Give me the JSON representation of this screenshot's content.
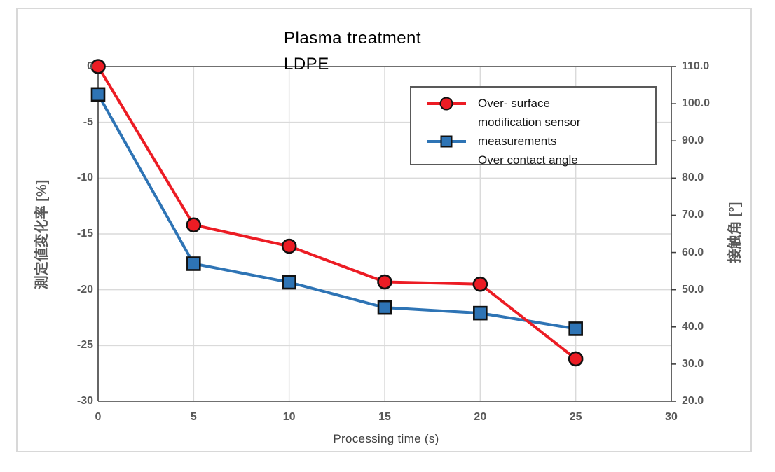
{
  "title": {
    "line1": "Plasma treatment",
    "line2": "LDPE"
  },
  "axes": {
    "left_label": "測定値変化率 [%]",
    "right_label": "接触角 [°]",
    "x_label": "Processing time (s)"
  },
  "legend": {
    "entries": [
      {
        "label": "Over- surface\nmodification sensor",
        "marker": "circle",
        "color": "#ec1c24"
      },
      {
        "label": "measurements\nOver contact angle",
        "marker": "square",
        "color": "#2e74b5"
      }
    ]
  },
  "colors": {
    "red_series": "#ec1c24",
    "blue_series": "#2e74b5",
    "marker_outline": "#111111",
    "axis_line": "#404040",
    "gridline": "#dadada",
    "axis_text": "#595959",
    "frame_border": "#d8d8d8"
  },
  "chart_data": {
    "type": "line",
    "title": "Plasma treatment LDPE",
    "xlabel": "Processing time (s)",
    "ylabel_left": "測定値変化率 [%]",
    "ylabel_right": "接触角 [°]",
    "x": [
      0,
      5,
      10,
      15,
      20,
      25
    ],
    "series": [
      {
        "name": "measurements Over contact angle",
        "axis": "right",
        "color": "#2e74b5",
        "marker": "square",
        "values": [
          102.5,
          57.0,
          52.0,
          45.2,
          43.7,
          39.5
        ]
      },
      {
        "name": "Over- surface modification sensor",
        "axis": "left",
        "color": "#ec1c24",
        "marker": "circle",
        "values": [
          0,
          -14.2,
          -16.1,
          -19.3,
          -19.5,
          -26.2
        ]
      }
    ],
    "xlim": [
      0,
      30
    ],
    "x_ticks": [
      0,
      5,
      10,
      15,
      20,
      25,
      30
    ],
    "ylim_left": [
      -30,
      0
    ],
    "left_ticks": [
      0,
      -5,
      -10,
      -15,
      -20,
      -25,
      -30
    ],
    "ylim_right": [
      20,
      110
    ],
    "right_ticks": [
      "110.0",
      "100.0",
      "90.0",
      "80.0",
      "70.0",
      "60.0",
      "50.0",
      "40.0",
      "30.0",
      "20.0"
    ],
    "grid": true,
    "legend_position": "upper right"
  }
}
